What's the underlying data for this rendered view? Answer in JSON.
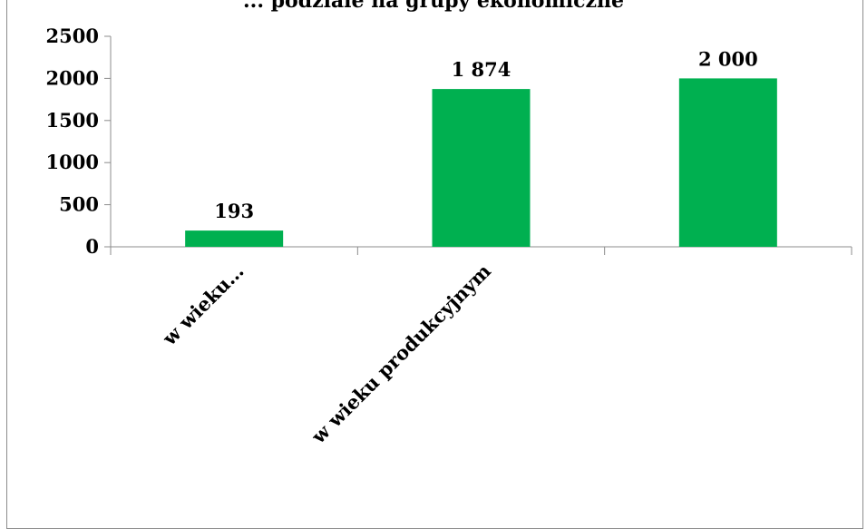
{
  "chart_data": {
    "type": "bar",
    "title": "... podziale na grupy ekonomiczne",
    "categories": [
      "w wieku…",
      "w wieku produkcyjnym",
      ""
    ],
    "values": [
      193,
      1874,
      2000
    ],
    "value_labels": [
      "193",
      "1 874",
      "2 000"
    ],
    "y_ticks": [
      "0",
      "500",
      "1000",
      "1500",
      "2000",
      "2500"
    ],
    "ylim": [
      0,
      2500
    ],
    "xlabel": "",
    "ylabel": "",
    "grid": false,
    "legend": "none",
    "bar_color": "#00b050"
  }
}
